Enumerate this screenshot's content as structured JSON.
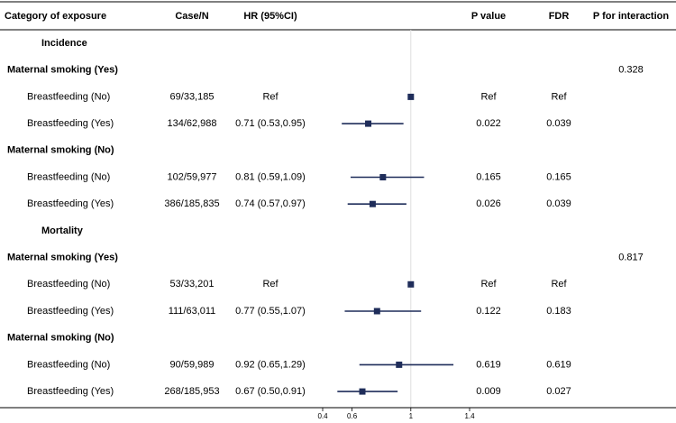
{
  "chart_data": {
    "type": "forest",
    "headers": [
      "Category of exposure",
      "Case/N",
      "HR (95%CI)",
      "P value",
      "FDR",
      "P for interaction"
    ],
    "xlim": [
      0.4,
      1.4
    ],
    "xticks": [
      0.4,
      0.6,
      1,
      1.4
    ],
    "ref_line": 1,
    "color": "#1f2d5a",
    "groups": [
      {
        "title": "Incidence",
        "subgroups": [
          {
            "title": "Maternal smoking (Yes)",
            "p_interaction": 0.328,
            "rows": [
              {
                "label": "Breastfeeding (No)",
                "case_n": "69/33,185",
                "hr": 1,
                "hr_label": "Ref",
                "p": "Ref",
                "fdr": "Ref"
              },
              {
                "label": "Breastfeeding (Yes)",
                "case_n": "134/62,988",
                "hr": 0.71,
                "lower": 0.53,
                "upper": 0.95,
                "hr_label": "0.71 (0.53,0.95)",
                "p": 0.022,
                "fdr": 0.039
              }
            ]
          },
          {
            "title": "Maternal smoking (No)",
            "rows": [
              {
                "label": "Breastfeeding (No)",
                "case_n": "102/59,977",
                "hr": 0.81,
                "lower": 0.59,
                "upper": 1.09,
                "hr_label": "0.81 (0.59,1.09)",
                "p": 0.165,
                "fdr": 0.165
              },
              {
                "label": "Breastfeeding (Yes)",
                "case_n": "386/185,835",
                "hr": 0.74,
                "lower": 0.57,
                "upper": 0.97,
                "hr_label": "0.74 (0.57,0.97)",
                "p": 0.026,
                "fdr": 0.039
              }
            ]
          }
        ]
      },
      {
        "title": "Mortality",
        "subgroups": [
          {
            "title": "Maternal smoking (Yes)",
            "p_interaction": 0.817,
            "rows": [
              {
                "label": "Breastfeeding (No)",
                "case_n": "53/33,201",
                "hr": 1,
                "hr_label": "Ref",
                "p": "Ref",
                "fdr": "Ref"
              },
              {
                "label": "Breastfeeding (Yes)",
                "case_n": "111/63,011",
                "hr": 0.77,
                "lower": 0.55,
                "upper": 1.07,
                "hr_label": "0.77 (0.55,1.07)",
                "p": 0.122,
                "fdr": 0.183
              }
            ]
          },
          {
            "title": "Maternal smoking (No)",
            "rows": [
              {
                "label": "Breastfeeding (No)",
                "case_n": "90/59,989",
                "hr": 0.92,
                "lower": 0.65,
                "upper": 1.29,
                "hr_label": "0.92 (0.65,1.29)",
                "p": 0.619,
                "fdr": 0.619
              },
              {
                "label": "Breastfeeding (Yes)",
                "case_n": "268/185,953",
                "hr": 0.67,
                "lower": 0.5,
                "upper": 0.91,
                "hr_label": "0.67 (0.50,0.91)",
                "p": 0.009,
                "fdr": 0.027
              }
            ]
          }
        ]
      }
    ]
  }
}
